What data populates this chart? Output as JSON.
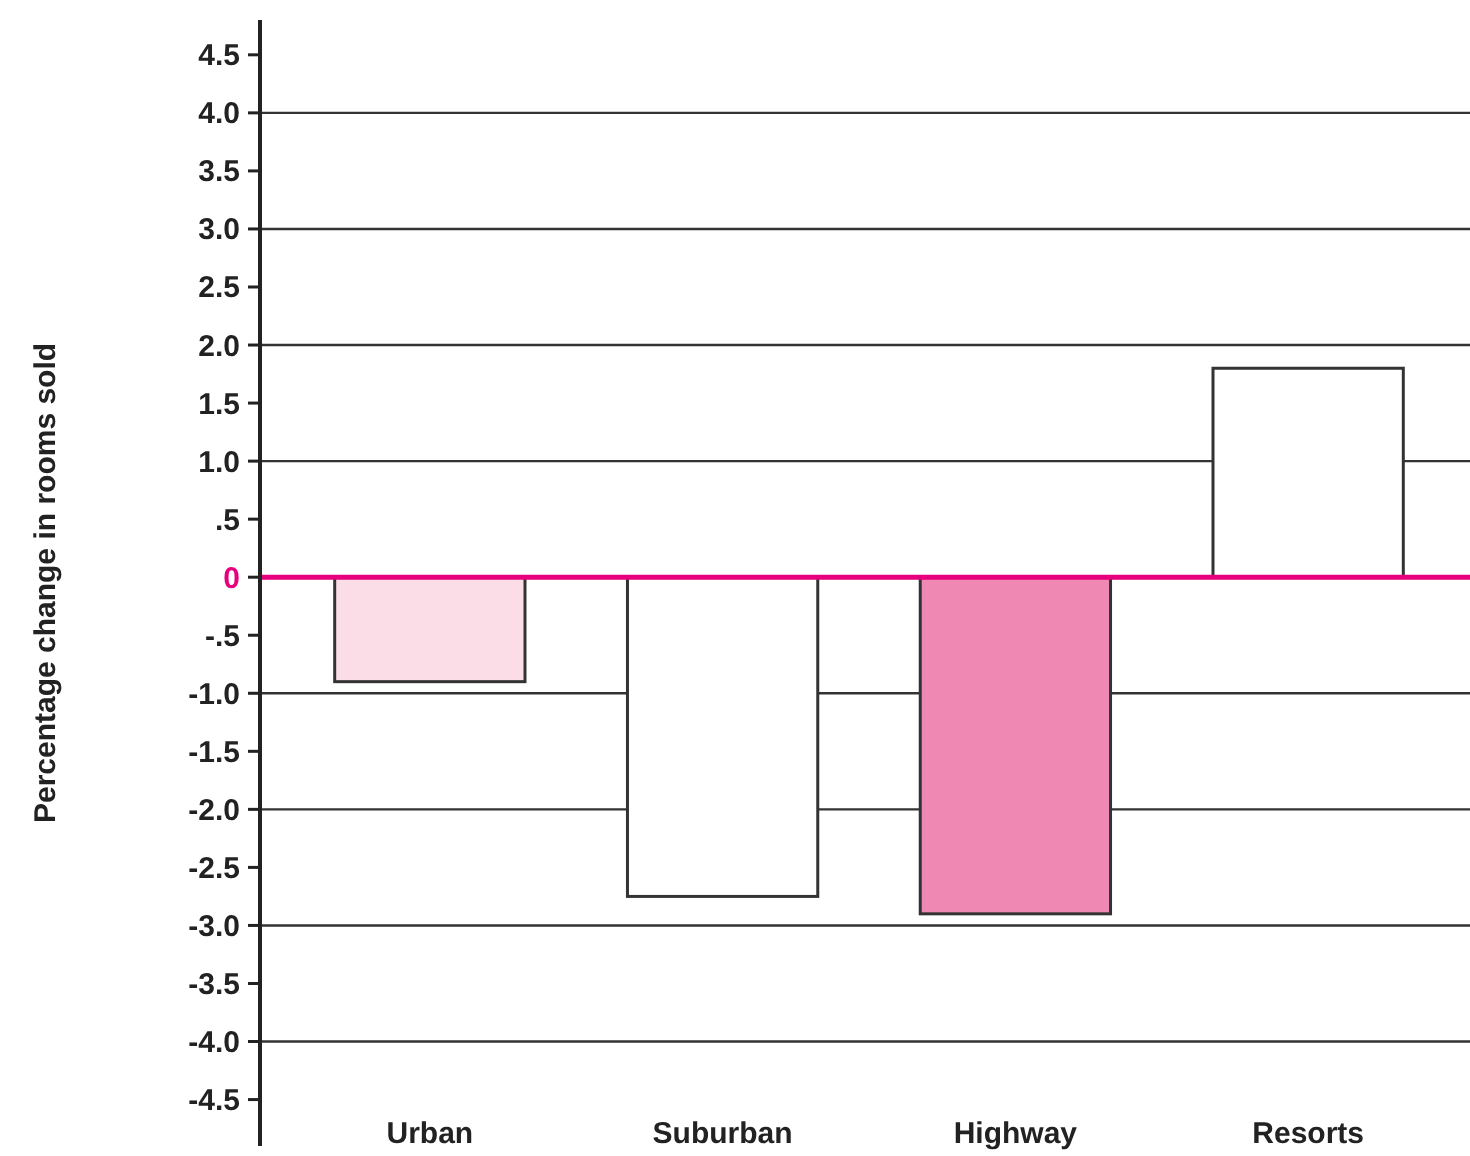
{
  "chart_data": {
    "type": "bar",
    "ylabel": "Percentage change in rooms sold",
    "categories": [
      "Urban",
      "Suburban",
      "Highway",
      "Resorts"
    ],
    "values": [
      -0.9,
      -2.75,
      -2.9,
      1.8
    ],
    "colors": [
      "#fbdde8",
      "#ffffff",
      "#f088b4",
      "#ffffff"
    ],
    "ylim": [
      -4.9,
      4.8
    ],
    "yticks": [
      {
        "value": 4.5,
        "label": "4.5"
      },
      {
        "value": 4,
        "label": "4.0"
      },
      {
        "value": 3.5,
        "label": "3.5"
      },
      {
        "value": 3,
        "label": "3.0"
      },
      {
        "value": 2.5,
        "label": "2.5"
      },
      {
        "value": 2,
        "label": "2.0"
      },
      {
        "value": 1.5,
        "label": "1.5"
      },
      {
        "value": 1,
        "label": "1.0"
      },
      {
        "value": 0.5,
        "label": ".5"
      },
      {
        "value": 0,
        "label": "0"
      },
      {
        "value": -0.5,
        "label": "-.5"
      },
      {
        "value": -1,
        "label": "-1.0"
      },
      {
        "value": -1.5,
        "label": "-1.5"
      },
      {
        "value": -2,
        "label": "-2.0"
      },
      {
        "value": -2.5,
        "label": "-2.5"
      },
      {
        "value": -3,
        "label": "-3.0"
      },
      {
        "value": -3.5,
        "label": "-3.5"
      },
      {
        "value": -4,
        "label": "-4.0"
      },
      {
        "value": -4.5,
        "label": "-4.5"
      }
    ],
    "grid": "y",
    "ref_lines": [
      {
        "axis": "y",
        "value": 0,
        "color": "#e6007e"
      }
    ]
  }
}
